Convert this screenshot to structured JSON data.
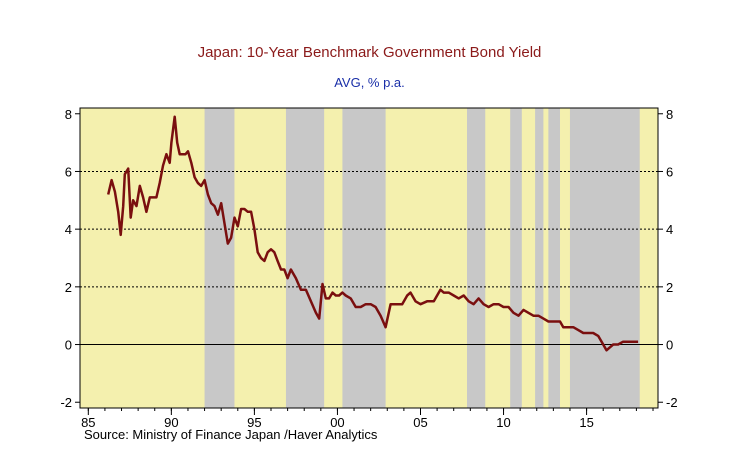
{
  "chart_data": {
    "type": "line",
    "title": "Japan: 10-Year Benchmark Government Bond Yield",
    "subtitle": "AVG, % p.a.",
    "source": "Source:   Ministry of Finance Japan /Haver Analytics",
    "xlim": [
      1984.5,
      2019.3
    ],
    "ylim": [
      -2.2,
      8.2
    ],
    "x_ticks": [
      {
        "value": 1985,
        "label": "85"
      },
      {
        "value": 1990,
        "label": "90"
      },
      {
        "value": 1995,
        "label": "95"
      },
      {
        "value": 2000,
        "label": "00"
      },
      {
        "value": 2005,
        "label": "05"
      },
      {
        "value": 2010,
        "label": "10"
      },
      {
        "value": 2015,
        "label": "15"
      }
    ],
    "y_ticks": [
      {
        "value": 8,
        "label": "8"
      },
      {
        "value": 6,
        "label": "6"
      },
      {
        "value": 4,
        "label": "4"
      },
      {
        "value": 2,
        "label": "2"
      },
      {
        "value": 0,
        "label": "0"
      },
      {
        "value": -2,
        "label": "-2"
      }
    ],
    "gridlines": [
      6,
      4,
      2,
      0
    ],
    "colors": {
      "plot_bg": "#f4f0ae",
      "band": "#c8c8c8",
      "line": "#7a0f0f",
      "title": "#8b1a1a",
      "subtitle": "#1a2fa8"
    },
    "shaded_periods": [
      [
        1992.0,
        1993.8
      ],
      [
        1996.9,
        1999.2
      ],
      [
        2000.3,
        2002.9
      ],
      [
        2007.8,
        2008.9
      ],
      [
        2010.4,
        2011.1
      ],
      [
        2011.9,
        2012.4
      ],
      [
        2012.7,
        2013.4
      ],
      [
        2014.0,
        2018.2
      ]
    ],
    "series": [
      {
        "x": [
          1986.2,
          1986.4,
          1986.6,
          1986.8,
          1986.95,
          1987.1,
          1987.2,
          1987.4,
          1987.55,
          1987.7,
          1987.9,
          1988.1,
          1988.3,
          1988.5,
          1988.7,
          1988.9,
          1989.1,
          1989.3,
          1989.5,
          1989.7,
          1989.9,
          1990.0,
          1990.2,
          1990.35,
          1990.5,
          1990.7,
          1990.85,
          1991.0,
          1991.2,
          1991.4,
          1991.6,
          1991.8,
          1992.0,
          1992.2,
          1992.4,
          1992.6,
          1992.8,
          1993.0,
          1993.2,
          1993.4,
          1993.6,
          1993.8,
          1994.0,
          1994.2,
          1994.4,
          1994.6,
          1994.8,
          1995.0,
          1995.2,
          1995.4,
          1995.6,
          1995.8,
          1996.0,
          1996.2,
          1996.4,
          1996.6,
          1996.8,
          1997.0,
          1997.2,
          1997.5,
          1997.8,
          1998.1,
          1998.4,
          1998.7,
          1998.9,
          1999.1,
          1999.3,
          1999.5,
          1999.7,
          1999.9,
          2000.1,
          2000.3,
          2000.5,
          2000.8,
          2001.1,
          2001.4,
          2001.7,
          2002.0,
          2002.3,
          2002.6,
          2002.9,
          2003.2,
          2003.4,
          2003.6,
          2003.9,
          2004.2,
          2004.4,
          2004.7,
          2005.0,
          2005.4,
          2005.8,
          2006.2,
          2006.4,
          2006.7,
          2007.0,
          2007.3,
          2007.6,
          2007.9,
          2008.2,
          2008.5,
          2008.8,
          2009.1,
          2009.4,
          2009.7,
          2010.0,
          2010.3,
          2010.6,
          2010.9,
          2011.2,
          2011.5,
          2011.8,
          2012.1,
          2012.4,
          2012.7,
          2013.0,
          2013.2,
          2013.4,
          2013.6,
          2013.9,
          2014.2,
          2014.5,
          2014.8,
          2015.1,
          2015.4,
          2015.7,
          2016.0,
          2016.2,
          2016.4,
          2016.6,
          2016.9,
          2017.2,
          2017.5,
          2017.8,
          2018.1
        ],
        "values": [
          5.2,
          5.7,
          5.3,
          4.6,
          3.8,
          4.8,
          5.9,
          6.1,
          4.4,
          5.0,
          4.8,
          5.5,
          5.1,
          4.6,
          5.1,
          5.1,
          5.1,
          5.6,
          6.2,
          6.6,
          6.3,
          7.0,
          7.9,
          7.0,
          6.6,
          6.6,
          6.6,
          6.7,
          6.3,
          5.8,
          5.6,
          5.5,
          5.7,
          5.2,
          4.9,
          4.8,
          4.5,
          4.9,
          4.2,
          3.5,
          3.7,
          4.4,
          4.1,
          4.7,
          4.7,
          4.6,
          4.6,
          4.0,
          3.2,
          3.0,
          2.9,
          3.2,
          3.3,
          3.2,
          2.9,
          2.6,
          2.6,
          2.3,
          2.6,
          2.3,
          1.9,
          1.9,
          1.5,
          1.1,
          0.9,
          2.1,
          1.6,
          1.6,
          1.8,
          1.7,
          1.7,
          1.8,
          1.7,
          1.6,
          1.3,
          1.3,
          1.4,
          1.4,
          1.3,
          1.0,
          0.6,
          1.4,
          1.4,
          1.4,
          1.4,
          1.7,
          1.8,
          1.5,
          1.4,
          1.5,
          1.5,
          1.9,
          1.8,
          1.8,
          1.7,
          1.6,
          1.7,
          1.5,
          1.4,
          1.6,
          1.4,
          1.3,
          1.4,
          1.4,
          1.3,
          1.3,
          1.1,
          1.0,
          1.2,
          1.1,
          1.0,
          1.0,
          0.9,
          0.8,
          0.8,
          0.8,
          0.8,
          0.6,
          0.6,
          0.6,
          0.5,
          0.4,
          0.4,
          0.4,
          0.3,
          0.0,
          -0.2,
          -0.1,
          0.0,
          0.0,
          0.1,
          0.1,
          0.1,
          0.1
        ]
      }
    ]
  }
}
